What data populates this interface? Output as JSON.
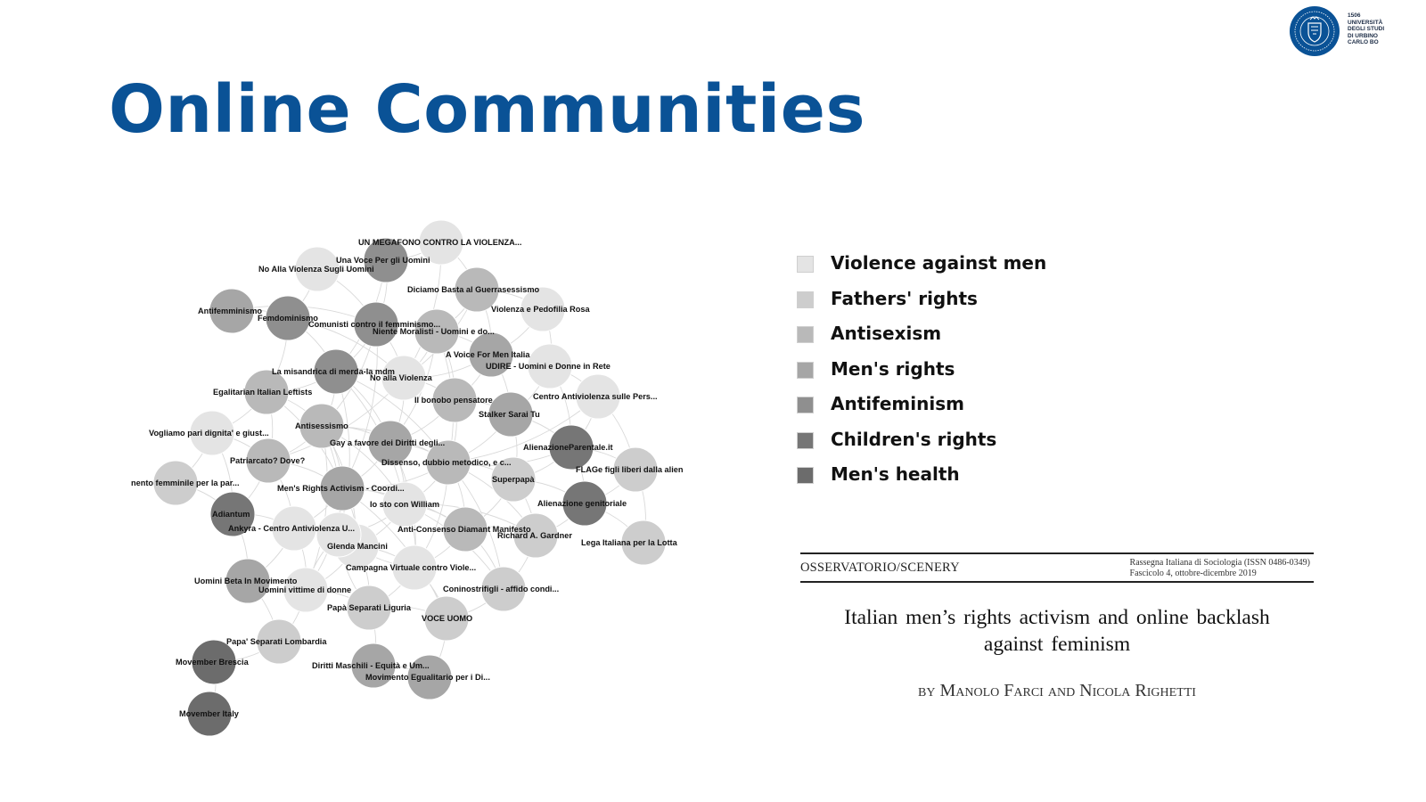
{
  "title": "Online Communities",
  "logo": {
    "year": "1506",
    "lines": [
      "UNIVERSITÀ",
      "DEGLI STUDI",
      "DI URBINO",
      "CARLO BO"
    ],
    "icon": "university-seal",
    "color": "#0a5296"
  },
  "legend": [
    {
      "label": "Violence against men",
      "color": "#e4e4e4"
    },
    {
      "label": "Fathers' rights",
      "color": "#cdcdcd"
    },
    {
      "label": "Antisexism",
      "color": "#b9b9b9"
    },
    {
      "label": "Men's rights",
      "color": "#a6a6a6"
    },
    {
      "label": "Antifeminism",
      "color": "#8f8f8f"
    },
    {
      "label": "Children's rights",
      "color": "#767676"
    },
    {
      "label": "Men's health",
      "color": "#6c6c6c"
    }
  ],
  "network": {
    "nodes": [
      {
        "label": "UN MEGAFONO CONTRO LA VIOLENZA...",
        "category": 0
      },
      {
        "label": "Una Voce Per gli Uomini",
        "category": 4
      },
      {
        "label": "No Alla Violenza Sugli Uomini",
        "category": 0
      },
      {
        "label": "Diciamo Basta al Guerrasessismo",
        "category": 2
      },
      {
        "label": "Violenza e Pedofilia Rosa",
        "category": 0
      },
      {
        "label": "Antifemminismo",
        "category": 3
      },
      {
        "label": "Femdominismo",
        "category": 4
      },
      {
        "label": "Comunisti contro il femminismo...",
        "category": 4
      },
      {
        "label": "Niente Moralisti - Uomini e do...",
        "category": 2
      },
      {
        "label": "A Voice For Men Italia",
        "category": 3
      },
      {
        "label": "UDIRE - Uomini e Donne in Rete",
        "category": 0
      },
      {
        "label": "La misandrica di merda-la mdm",
        "category": 4
      },
      {
        "label": "No alla Violenza",
        "category": 0
      },
      {
        "label": "Egalitarian Italian Leftists",
        "category": 2
      },
      {
        "label": "Centro Antiviolenza sulle Pers...",
        "category": 0
      },
      {
        "label": "Il bonobo pensatore",
        "category": 2
      },
      {
        "label": "Stalker Sarai Tu",
        "category": 3
      },
      {
        "label": "Antisessismo",
        "category": 2
      },
      {
        "label": "Vogliamo pari dignita' e giust...",
        "category": 0
      },
      {
        "label": "Gay a favore dei Diritti degli...",
        "category": 3
      },
      {
        "label": "AlienazioneParentale.it",
        "category": 5
      },
      {
        "label": "Patriarcato? Dove?",
        "category": 2
      },
      {
        "label": "Dissenso, dubbio metodico, e c...",
        "category": 2
      },
      {
        "label": "FLAGe figli liberi dalla alien",
        "category": 1
      },
      {
        "label": "nento femminile per la par...",
        "category": 1
      },
      {
        "label": "Superpapà",
        "category": 1
      },
      {
        "label": "Men's Rights Activism - Coordi...",
        "category": 3
      },
      {
        "label": "Alienazione genitoriale",
        "category": 5
      },
      {
        "label": "Io sto con William",
        "category": 0
      },
      {
        "label": "Adiantum",
        "category": 5
      },
      {
        "label": "Ankyra - Centro Antiviolenza U...",
        "category": 0
      },
      {
        "label": "Anti-Consenso Diamant Manifesto",
        "category": 2
      },
      {
        "label": "Richard A. Gardner",
        "category": 1
      },
      {
        "label": "Lega Italiana per la Lotta",
        "category": 1
      },
      {
        "label": "Glenda Mancini",
        "category": 0
      },
      {
        "label": "Campagna Virtuale contro Viole...",
        "category": 0
      },
      {
        "label": "Uomini Beta In Movimento",
        "category": 3
      },
      {
        "label": "Uomini vittime di donne",
        "category": 0
      },
      {
        "label": "Coninostrifigli - affido condi...",
        "category": 1
      },
      {
        "label": "Papà Separati Liguria",
        "category": 1
      },
      {
        "label": "VOCE UOMO",
        "category": 1
      },
      {
        "label": "Papa'  Separati Lombardia",
        "category": 1
      },
      {
        "label": "Movember Brescia",
        "category": 6
      },
      {
        "label": "Diritti Maschili - Equità e Um...",
        "category": 3
      },
      {
        "label": "Movimento Egualitario per i Di...",
        "category": 3
      },
      {
        "label": "Movember Italy",
        "category": 6
      },
      {
        "label": "",
        "category": 0
      }
    ]
  },
  "paper": {
    "section": "OSSERVATORIO/SCENERY",
    "journal": [
      "Rassegna Italiana di Sociologia (ISSN 0486-0349)",
      "Fascicolo 4, ottobre-dicembre 2019"
    ],
    "title_lines": [
      "Italian men’s rights activism and online backlash",
      "against feminism"
    ],
    "byline": "by Manolo Farci and Nicola Righetti"
  }
}
